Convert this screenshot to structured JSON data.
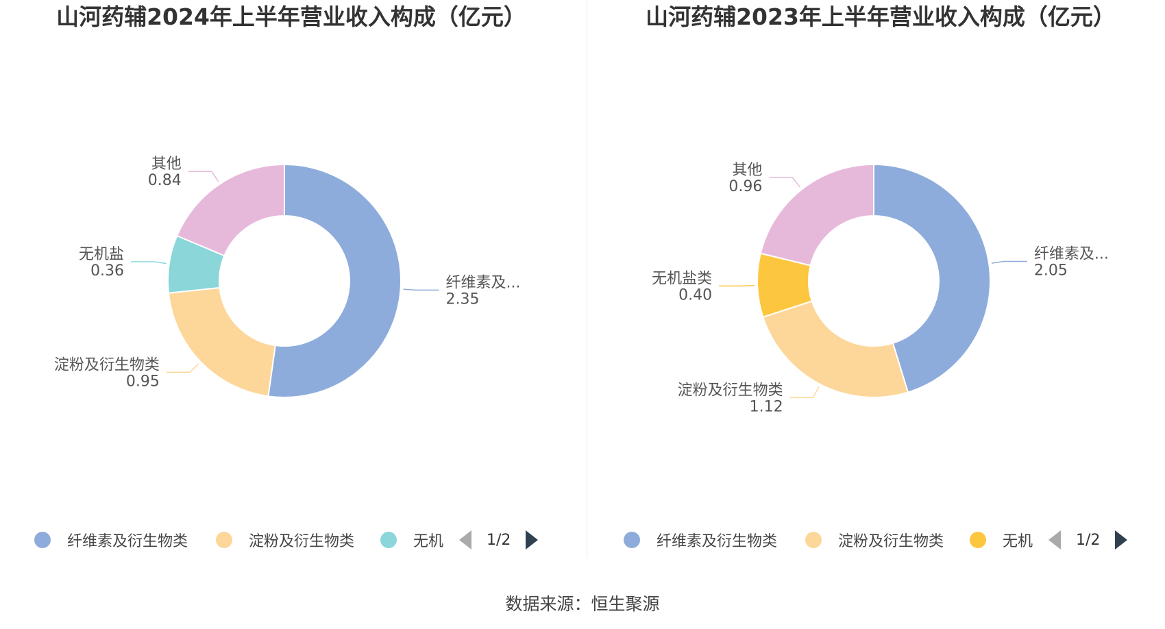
{
  "source": "数据来源：恒生聚源",
  "pager": "1/2",
  "chart_data": [
    {
      "type": "pie",
      "title": "山河药辅2024年上半年营业收入构成（亿元）",
      "slices": [
        {
          "name": "纤维素及衍生物类",
          "label": "纤维素及...",
          "value": 2.35,
          "display": "2.35",
          "color": "#8eacdb"
        },
        {
          "name": "淀粉及衍生物类",
          "label": "淀粉及衍生物类",
          "value": 0.95,
          "display": "0.95",
          "color": "#fdd79a"
        },
        {
          "name": "无机盐",
          "label": "无机盐",
          "value": 0.36,
          "display": "0.36",
          "color": "#8ad6d9"
        },
        {
          "name": "其他",
          "label": "其他",
          "value": 0.84,
          "display": "0.84",
          "color": "#e6b9da"
        }
      ],
      "legend": [
        {
          "label": "纤维素及衍生物类",
          "color": "#8eacdb"
        },
        {
          "label": "淀粉及衍生物类",
          "color": "#fdd79a"
        },
        {
          "label": "无机",
          "color": "#8ad6d9"
        }
      ]
    },
    {
      "type": "pie",
      "title": "山河药辅2023年上半年营业收入构成（亿元）",
      "slices": [
        {
          "name": "纤维素及衍生物类",
          "label": "纤维素及...",
          "value": 2.05,
          "display": "2.05",
          "color": "#8eacdb"
        },
        {
          "name": "淀粉及衍生物类",
          "label": "淀粉及衍生物类",
          "value": 1.12,
          "display": "1.12",
          "color": "#fdd79a"
        },
        {
          "name": "无机盐类",
          "label": "无机盐类",
          "value": 0.4,
          "display": "0.40",
          "color": "#fdc63f"
        },
        {
          "name": "其他",
          "label": "其他",
          "value": 0.96,
          "display": "0.96",
          "color": "#e6b9da"
        }
      ],
      "legend": [
        {
          "label": "纤维素及衍生物类",
          "color": "#8eacdb"
        },
        {
          "label": "淀粉及衍生物类",
          "color": "#fdd79a"
        },
        {
          "label": "无机",
          "color": "#fdc63f"
        }
      ]
    }
  ]
}
